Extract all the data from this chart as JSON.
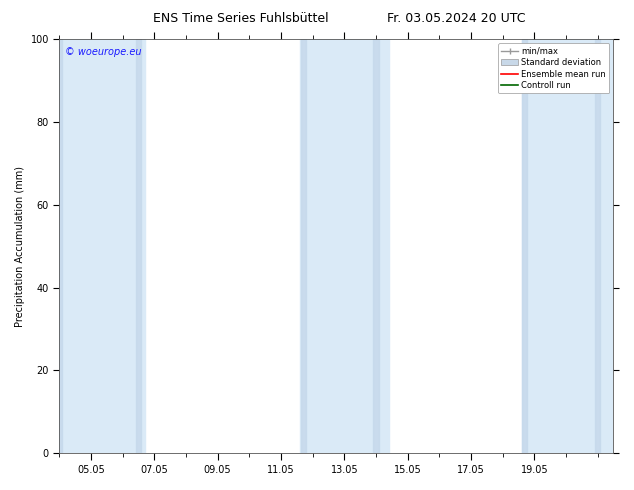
{
  "title_left": "ENS Time Series Fuhlsbüttel",
  "title_right": "Fr. 03.05.2024 20 UTC",
  "ylabel": "Precipitation Accumulation (mm)",
  "ylim": [
    0,
    100
  ],
  "yticks": [
    0,
    20,
    40,
    60,
    80,
    100
  ],
  "xtick_labels": [
    "05.05",
    "07.05",
    "09.05",
    "11.05",
    "13.05",
    "15.05",
    "17.05",
    "19.05"
  ],
  "xtick_positions": [
    4.0,
    6.0,
    8.0,
    10.0,
    12.0,
    14.0,
    16.0,
    18.0
  ],
  "watermark": "© woeurope.eu",
  "watermark_color": "#1a1aff",
  "background_color": "#ffffff",
  "plot_bg_color": "#ffffff",
  "shaded_bands": [
    {
      "x_start": 3.0,
      "x_end": 5.5,
      "color": "#dce9f5"
    },
    {
      "x_start": 5.5,
      "x_end": 7.0,
      "color": "#dce9f5"
    },
    {
      "x_start": 10.5,
      "x_end": 13.5,
      "color": "#dce9f5"
    },
    {
      "x_start": 17.5,
      "x_end": 20.5,
      "color": "#dce9f5"
    }
  ],
  "legend_entries": [
    {
      "label": "min/max",
      "color": "#999999"
    },
    {
      "label": "Standard deviation",
      "color": "#c8d8e8"
    },
    {
      "label": "Ensemble mean run",
      "color": "#ff0000"
    },
    {
      "label": "Controll run",
      "color": "#006600"
    }
  ],
  "x_range": [
    3.0,
    20.5
  ],
  "title_fontsize": 9,
  "axis_fontsize": 7,
  "tick_fontsize": 7,
  "watermark_fontsize": 7
}
